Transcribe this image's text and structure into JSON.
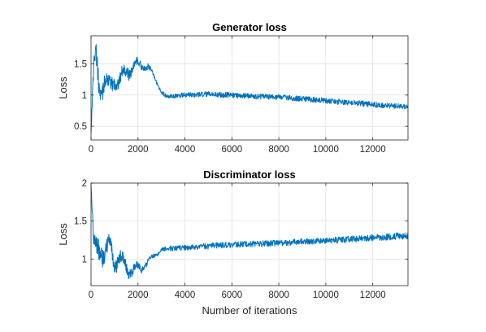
{
  "chart_data": [
    {
      "type": "line",
      "title": "Generator loss",
      "xlabel": "",
      "ylabel": "Loss",
      "xlim": [
        0,
        13500
      ],
      "ylim": [
        0.28,
        1.95
      ],
      "xticks": [
        0,
        2000,
        4000,
        6000,
        8000,
        10000,
        12000
      ],
      "xtick_labels": [
        "0",
        "2000",
        "4000",
        "6000",
        "8000",
        "10000",
        "12000"
      ],
      "yticks": [
        0.5,
        1,
        1.5
      ],
      "ytick_labels": [
        "0.5",
        "1",
        "1.5"
      ],
      "grid": true,
      "series": [
        {
          "color": "#0072BD",
          "x": [
            0,
            100,
            200,
            300,
            400,
            600,
            800,
            1000,
            1200,
            1500,
            1800,
            2100,
            2400,
            2700,
            3000,
            3200,
            3500,
            4000,
            5000,
            6000,
            7000,
            8000,
            9000,
            10000,
            11000,
            12000,
            13000,
            13500
          ],
          "y": [
            0.4,
            1.25,
            1.6,
            1.3,
            1.1,
            1.25,
            1.05,
            1.3,
            1.2,
            1.4,
            1.45,
            1.5,
            1.45,
            1.3,
            1.05,
            0.98,
            0.98,
            1.0,
            1.01,
            1.0,
            0.98,
            0.97,
            0.94,
            0.91,
            0.88,
            0.85,
            0.82,
            0.81
          ],
          "amplitude": [
            0.05,
            0.3,
            0.35,
            0.35,
            0.3,
            0.25,
            0.25,
            0.22,
            0.2,
            0.2,
            0.15,
            0.12,
            0.1,
            0.06,
            0.04,
            0.03,
            0.035,
            0.04,
            0.045,
            0.045,
            0.045,
            0.045,
            0.045,
            0.045,
            0.045,
            0.045,
            0.045,
            0.04
          ]
        }
      ]
    },
    {
      "type": "line",
      "title": "Discriminator loss",
      "xlabel": "Number of iterations",
      "ylabel": "Loss",
      "xlim": [
        0,
        13500
      ],
      "ylim": [
        0.65,
        2.0
      ],
      "xticks": [
        0,
        2000,
        4000,
        6000,
        8000,
        10000,
        12000
      ],
      "xtick_labels": [
        "0",
        "2000",
        "4000",
        "6000",
        "8000",
        "10000",
        "12000"
      ],
      "yticks": [
        1,
        1.5,
        2
      ],
      "ytick_labels": [
        "1",
        "1.5",
        "2"
      ],
      "grid": true,
      "series": [
        {
          "color": "#0072BD",
          "x": [
            0,
            100,
            200,
            300,
            400,
            600,
            800,
            1000,
            1200,
            1500,
            1800,
            2100,
            2400,
            2700,
            3000,
            3200,
            3500,
            4000,
            5000,
            6000,
            7000,
            8000,
            9000,
            10000,
            11000,
            12000,
            13000,
            13500
          ],
          "y": [
            1.95,
            1.2,
            1.1,
            1.15,
            1.2,
            1.05,
            1.15,
            1.0,
            1.0,
            0.9,
            0.85,
            0.88,
            0.95,
            1.05,
            1.12,
            1.14,
            1.14,
            1.15,
            1.17,
            1.19,
            1.2,
            1.21,
            1.23,
            1.24,
            1.26,
            1.28,
            1.3,
            1.3
          ],
          "amplitude": [
            0.05,
            0.3,
            0.3,
            0.3,
            0.25,
            0.25,
            0.22,
            0.2,
            0.18,
            0.15,
            0.12,
            0.1,
            0.08,
            0.05,
            0.03,
            0.03,
            0.035,
            0.035,
            0.04,
            0.04,
            0.04,
            0.04,
            0.04,
            0.04,
            0.045,
            0.045,
            0.045,
            0.04
          ]
        }
      ]
    }
  ]
}
